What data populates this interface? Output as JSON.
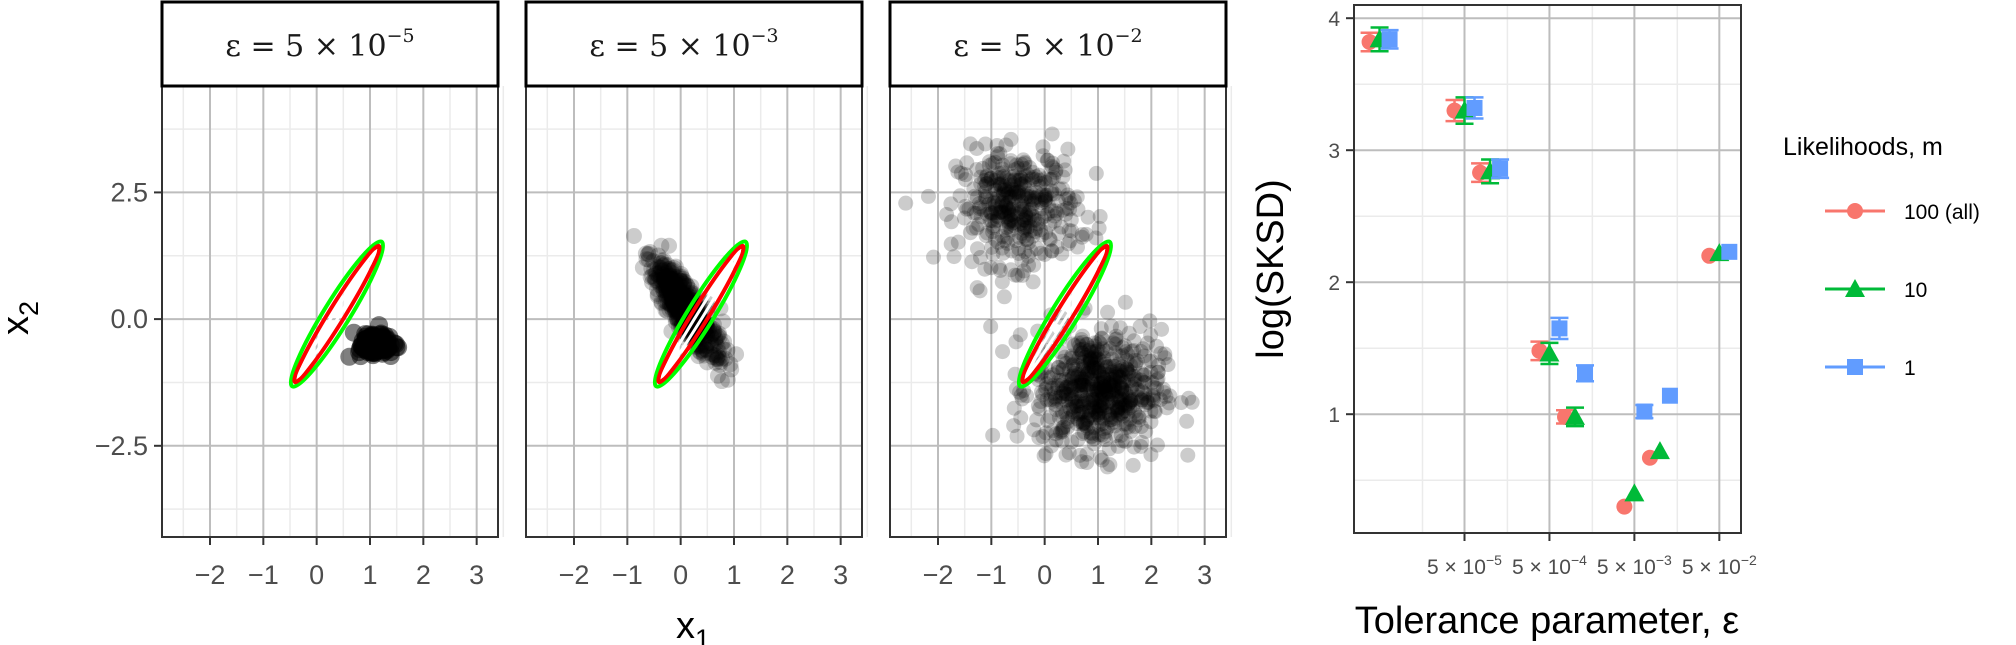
{
  "chart_data": [
    {
      "type": "scatter",
      "panel": "left",
      "facets": [
        {
          "strip": {
            "lhs": "ε = 5 × 10",
            "exp": "−5"
          }
        },
        {
          "strip": {
            "lhs": "ε = 5 × 10",
            "exp": "−3"
          }
        },
        {
          "strip": {
            "lhs": "ε = 5 × 10",
            "exp": "−2"
          }
        }
      ],
      "xlabel": "x",
      "xlabel_sub": "1",
      "ylabel": "x",
      "ylabel_sub": "2",
      "xlim": [
        -2.9,
        3.4
      ],
      "ylim": [
        -4.3,
        4.6
      ],
      "x_ticks": [
        -2,
        -1,
        0,
        1,
        2,
        3
      ],
      "x_tick_labels": [
        "−2",
        "−1",
        "0",
        "1",
        "2",
        "3"
      ],
      "y_ticks": [
        -2.5,
        0.0,
        2.5
      ],
      "y_tick_labels": [
        "−2.5",
        "0.0",
        "2.5"
      ],
      "grid": true,
      "reference_contours": {
        "colors": [
          "#00ff00",
          "#ff0000",
          "#ffffff"
        ],
        "center": [
          0.38,
          0.1
        ],
        "direction": [
          -1,
          1.7
        ]
      },
      "samples_description": {
        "facet_1": {
          "clusters": [
            {
              "center": [
                1.1,
                -0.5
              ],
              "spread": 0.12
            }
          ]
        },
        "facet_2": {
          "clusters": [
            {
              "center": [
                0.1,
                0.2
              ],
              "spread_along": 1.05,
              "spread_across": 0.12
            }
          ]
        },
        "facet_3": {
          "clusters": [
            {
              "center": [
                -0.5,
                2.2
              ],
              "spread": 0.8
            },
            {
              "center": [
                1.0,
                -1.4
              ],
              "spread": 0.85
            }
          ]
        }
      },
      "point_color": "#000000",
      "point_alpha": 0.2
    },
    {
      "type": "scatter",
      "panel": "right",
      "xlabel": "Tolerance parameter, ε",
      "ylabel": "log(SKSD)",
      "x_tick_labels": [
        {
          "base": "5 × 10",
          "exp": "−5"
        },
        {
          "base": "5 × 10",
          "exp": "−4"
        },
        {
          "base": "5 × 10",
          "exp": "−3"
        },
        {
          "base": "5 × 10",
          "exp": "−2"
        }
      ],
      "x_scale": "log10",
      "y_ticks": [
        1,
        2,
        3,
        4
      ],
      "ylim": [
        0.1,
        4.1
      ],
      "grid": true,
      "legend": {
        "title": "Likelihoods, m",
        "position": "right"
      },
      "series": [
        {
          "name": "100 (all)",
          "color": "#f8766d",
          "shape": "circle",
          "x": [
            5e-06,
            5e-05,
            0.0001,
            0.0005,
            0.001,
            0.005,
            0.01,
            0.05
          ],
          "y": [
            3.82,
            3.3,
            2.83,
            1.48,
            0.98,
            0.3,
            0.67,
            2.2
          ],
          "err": [
            0.07,
            0.08,
            0.07,
            0.07,
            0.05,
            0,
            0,
            0
          ]
        },
        {
          "name": "10",
          "color": "#00ba38",
          "shape": "triangle",
          "x": [
            5e-06,
            5e-05,
            0.0001,
            0.0005,
            0.001,
            0.005,
            0.01,
            0.05
          ],
          "y": [
            3.84,
            3.3,
            2.84,
            1.46,
            0.98,
            0.4,
            0.72,
            2.22
          ],
          "err": [
            0.09,
            0.1,
            0.09,
            0.08,
            0.07,
            0,
            0,
            0
          ]
        },
        {
          "name": "1",
          "color": "#619cff",
          "shape": "square",
          "x": [
            5e-06,
            5e-05,
            0.0001,
            0.0005,
            0.001,
            0.005,
            0.01,
            0.05
          ],
          "y": [
            3.84,
            3.32,
            2.86,
            1.65,
            1.31,
            1.02,
            1.14,
            2.23
          ],
          "err": [
            0.07,
            0.08,
            0.07,
            0.08,
            0.06,
            0.05,
            0,
            0
          ]
        }
      ]
    }
  ]
}
